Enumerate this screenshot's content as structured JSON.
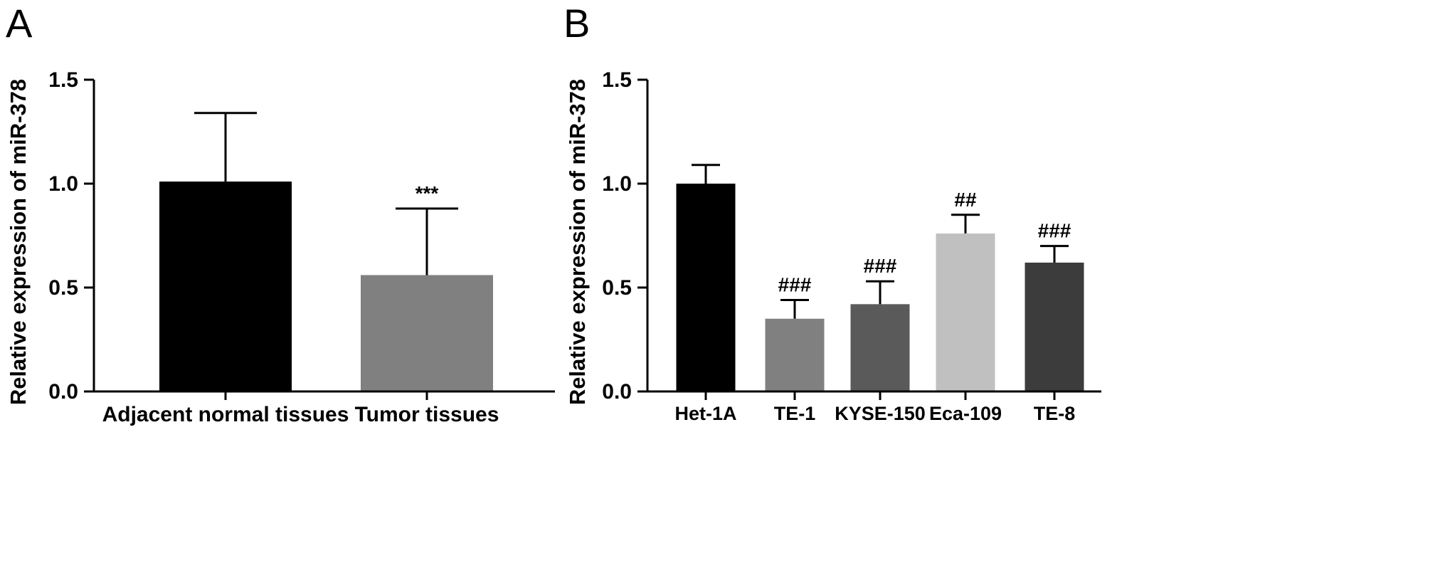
{
  "chart_data": [
    {
      "type": "bar",
      "panel_label": "A",
      "ylabel": "Relative expression of miR-378",
      "ylim": [
        0,
        1.5
      ],
      "yticks": [
        "0.0",
        "0.5",
        "1.0",
        "1.5"
      ],
      "categories": [
        "Adjacent normal tissues",
        "Tumor tissues"
      ],
      "values": [
        1.01,
        0.56
      ],
      "errors": [
        0.33,
        0.32
      ],
      "colors": [
        "#000000",
        "#808080"
      ],
      "annotations": [
        "",
        "***"
      ]
    },
    {
      "type": "bar",
      "panel_label": "B",
      "ylabel": "Relative expression of miR-378",
      "ylim": [
        0,
        1.5
      ],
      "yticks": [
        "0.0",
        "0.5",
        "1.0",
        "1.5"
      ],
      "categories": [
        "Het-1A",
        "TE-1",
        "KYSE-150",
        "Eca-109",
        "TE-8"
      ],
      "values": [
        1.0,
        0.35,
        0.42,
        0.76,
        0.62
      ],
      "errors": [
        0.09,
        0.09,
        0.11,
        0.09,
        0.08
      ],
      "colors": [
        "#000000",
        "#808080",
        "#5a5a5a",
        "#c0c0c0",
        "#3c3c3c"
      ],
      "annotations": [
        "",
        "###",
        "###",
        "##",
        "###"
      ]
    }
  ]
}
